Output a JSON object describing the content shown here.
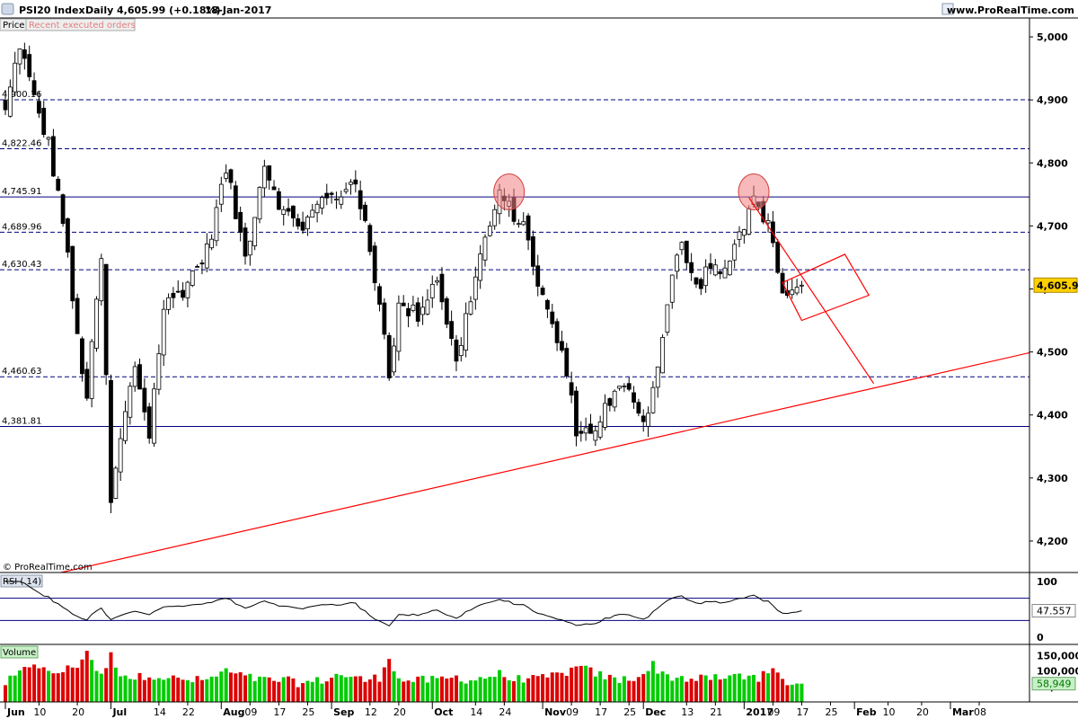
{
  "header": {
    "instrument": "PSI20 Index",
    "period": "Daily",
    "last": "4,605.99 (+0.18%)",
    "date": "18-Jan-2017",
    "site": "www.ProRealTime.com",
    "price_tab": "Price",
    "orders_tab": "Recent executed orders"
  },
  "watermark": "© ProRealTime.com",
  "colors": {
    "up": "#ffffff",
    "down": "#000000",
    "level": "#000080",
    "trend": "#ff0000",
    "ellipse": "#f08080",
    "vol_up": "#00cc00",
    "vol_down": "#dd0000",
    "price_badge": "#ffd000"
  },
  "chart_data": [
    {
      "type": "candlestick",
      "panel": "Price",
      "ylim": [
        4150,
        5030
      ],
      "yticks": [
        "4,200",
        "4,300",
        "4,400",
        "4,500",
        "4,600",
        "4,700",
        "4,800",
        "4,900",
        "5,000"
      ],
      "ytick_values": [
        4200,
        4300,
        4400,
        4500,
        4600,
        4700,
        4800,
        4900,
        5000
      ],
      "last_price": "4,605.99",
      "last_price_value": 4605.99,
      "levels": [
        {
          "label": "4,900.16",
          "value": 4900.16,
          "style": "dashed"
        },
        {
          "label": "4,822.46",
          "value": 4822.46,
          "style": "dashed"
        },
        {
          "label": "4,745.91",
          "value": 4745.91,
          "style": "solid"
        },
        {
          "label": "4,689.96",
          "value": 4689.96,
          "style": "dashed"
        },
        {
          "label": "4,630.43",
          "value": 4630.43,
          "style": "dashed"
        },
        {
          "label": "4,460.63",
          "value": 4460.63,
          "style": "dashed"
        },
        {
          "label": "4,381.81",
          "value": 4381.81,
          "style": "solid"
        }
      ],
      "x_labels": [
        "Jun",
        "10",
        "20",
        "Jul",
        "14",
        "22",
        "Aug",
        "09",
        "17",
        "25",
        "Sep",
        "12",
        "20",
        "Oct",
        "14",
        "24",
        "Nov",
        "09",
        "17",
        "25",
        "Dec",
        "13",
        "21",
        "2017",
        "09",
        "17",
        "25",
        "Feb",
        "10",
        "20",
        "Mar",
        "08"
      ],
      "x_label_bold": [
        "Jun",
        "Jul",
        "Aug",
        "Sep",
        "Oct",
        "Nov",
        "Dec",
        "2017",
        "Feb",
        "Mar"
      ],
      "anchors": [
        {
          "label": "Jun",
          "idx": 0
        },
        {
          "label": "Jul",
          "idx": 22
        },
        {
          "label": "Aug",
          "idx": 45
        },
        {
          "label": "Sep",
          "idx": 68
        },
        {
          "label": "Oct",
          "idx": 89
        },
        {
          "label": "Nov",
          "idx": 112
        },
        {
          "label": "Dec",
          "idx": 133
        },
        {
          "label": "2017",
          "idx": 154
        },
        {
          "label": "18-Jan",
          "idx": 166
        }
      ],
      "control_points": [
        {
          "idx": 0,
          "close": 4880,
          "vol": 60000
        },
        {
          "idx": 3,
          "close": 4990,
          "vol": 90000
        },
        {
          "idx": 6,
          "close": 4900,
          "vol": 130000
        },
        {
          "idx": 9,
          "close": 4830,
          "vol": 90000
        },
        {
          "idx": 12,
          "close": 4710,
          "vol": 100000
        },
        {
          "idx": 15,
          "close": 4520,
          "vol": 120000
        },
        {
          "idx": 17,
          "close": 4430,
          "vol": 165000
        },
        {
          "idx": 20,
          "close": 4650,
          "vol": 80000
        },
        {
          "idx": 22,
          "close": 4260,
          "vol": 150000
        },
        {
          "idx": 24,
          "close": 4360,
          "vol": 95000
        },
        {
          "idx": 27,
          "close": 4480,
          "vol": 75000
        },
        {
          "idx": 30,
          "close": 4370,
          "vol": 90000
        },
        {
          "idx": 33,
          "close": 4570,
          "vol": 80000
        },
        {
          "idx": 37,
          "close": 4600,
          "vol": 70000
        },
        {
          "idx": 42,
          "close": 4660,
          "vol": 70000
        },
        {
          "idx": 46,
          "close": 4790,
          "vol": 100000
        },
        {
          "idx": 50,
          "close": 4650,
          "vol": 80000
        },
        {
          "idx": 54,
          "close": 4800,
          "vol": 70000
        },
        {
          "idx": 58,
          "close": 4720,
          "vol": 70000
        },
        {
          "idx": 62,
          "close": 4700,
          "vol": 60000
        },
        {
          "idx": 66,
          "close": 4740,
          "vol": 70000
        },
        {
          "idx": 70,
          "close": 4750,
          "vol": 90000
        },
        {
          "idx": 72,
          "close": 4780,
          "vol": 80000
        },
        {
          "idx": 75,
          "close": 4700,
          "vol": 70000
        },
        {
          "idx": 78,
          "close": 4580,
          "vol": 80000
        },
        {
          "idx": 80,
          "close": 4470,
          "vol": 150000
        },
        {
          "idx": 82,
          "close": 4570,
          "vol": 70000
        },
        {
          "idx": 86,
          "close": 4560,
          "vol": 70000
        },
        {
          "idx": 90,
          "close": 4620,
          "vol": 70000
        },
        {
          "idx": 94,
          "close": 4480,
          "vol": 80000
        },
        {
          "idx": 97,
          "close": 4590,
          "vol": 70000
        },
        {
          "idx": 100,
          "close": 4680,
          "vol": 80000
        },
        {
          "idx": 103,
          "close": 4745,
          "vol": 90000
        },
        {
          "idx": 106,
          "close": 4720,
          "vol": 70000
        },
        {
          "idx": 109,
          "close": 4680,
          "vol": 80000
        },
        {
          "idx": 111,
          "close": 4610,
          "vol": 70000
        },
        {
          "idx": 113,
          "close": 4560,
          "vol": 80000
        },
        {
          "idx": 116,
          "close": 4500,
          "vol": 90000
        },
        {
          "idx": 119,
          "close": 4380,
          "vol": 110000
        },
        {
          "idx": 122,
          "close": 4370,
          "vol": 100000
        },
        {
          "idx": 125,
          "close": 4410,
          "vol": 80000
        },
        {
          "idx": 128,
          "close": 4440,
          "vol": 70000
        },
        {
          "idx": 131,
          "close": 4430,
          "vol": 80000
        },
        {
          "idx": 133,
          "close": 4390,
          "vol": 90000
        },
        {
          "idx": 135,
          "close": 4440,
          "vol": 120000
        },
        {
          "idx": 137,
          "close": 4530,
          "vol": 90000
        },
        {
          "idx": 139,
          "close": 4620,
          "vol": 80000
        },
        {
          "idx": 141,
          "close": 4670,
          "vol": 80000
        },
        {
          "idx": 144,
          "close": 4600,
          "vol": 70000
        },
        {
          "idx": 147,
          "close": 4640,
          "vol": 80000
        },
        {
          "idx": 150,
          "close": 4620,
          "vol": 70000
        },
        {
          "idx": 152,
          "close": 4670,
          "vol": 90000
        },
        {
          "idx": 154,
          "close": 4700,
          "vol": 80000
        },
        {
          "idx": 155,
          "close": 4740,
          "vol": 95000
        },
        {
          "idx": 157,
          "close": 4735,
          "vol": 80000
        },
        {
          "idx": 159,
          "close": 4700,
          "vol": 90000
        },
        {
          "idx": 160,
          "close": 4660,
          "vol": 100000
        },
        {
          "idx": 162,
          "close": 4580,
          "vol": 70000
        },
        {
          "idx": 164,
          "close": 4590,
          "vol": 60000
        },
        {
          "idx": 166,
          "close": 4606,
          "vol": 58949
        }
      ],
      "annotations": {
        "support_trendline": [
          {
            "idx": 0,
            "value": 4130
          },
          {
            "idx": 220,
            "value": 4510
          }
        ],
        "wedge_lines": [
          {
            "idx": 155,
            "value": 4745
          },
          {
            "idx": 181,
            "value": 4450
          }
        ],
        "wedge": [
          {
            "idx": 162,
            "value": 4610
          },
          {
            "idx": 175,
            "value": 4655
          },
          {
            "idx": 180,
            "value": 4590
          },
          {
            "idx": 166,
            "value": 4550
          }
        ],
        "ellipses": [
          {
            "idx": 105,
            "value": 4754
          },
          {
            "idx": 156,
            "value": 4754
          }
        ]
      }
    },
    {
      "type": "line",
      "panel": "RSI",
      "title": "RSI ( 14)",
      "value_label": "47.557",
      "value": 47.557,
      "yticks": [
        "100",
        "0"
      ],
      "ylim": [
        0,
        100
      ],
      "bands": [
        70,
        30
      ]
    },
    {
      "type": "bar",
      "panel": "Volume",
      "title": "Volume",
      "yticks": [
        "150,000",
        "100,000",
        "50,000"
      ],
      "ytick_values": [
        150000,
        100000,
        50000
      ],
      "value_label": "58,949",
      "value": 58949,
      "ylim": [
        0,
        180000
      ]
    }
  ]
}
